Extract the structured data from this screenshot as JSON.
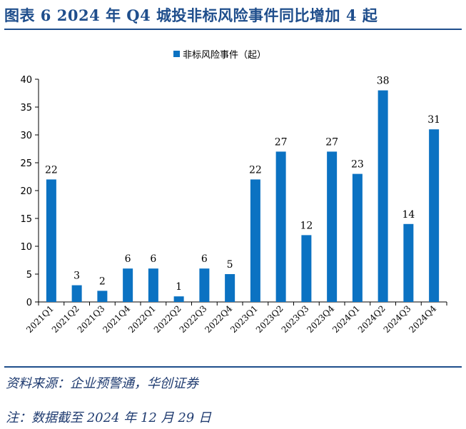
{
  "figure": {
    "title": "图表 6   2024 年 Q4 城投非标风险事件同比增加 4 起",
    "source": "资料来源：企业预警通，华创证券",
    "note": "注：数据截至 2024 年 12 月 29 日"
  },
  "colors": {
    "bar": "#0b72c2",
    "accent": "#1f4e8c",
    "axis": "#000000"
  },
  "chart_data": {
    "type": "bar",
    "title": "",
    "xlabel": "",
    "ylabel": "",
    "ylim": [
      0,
      40
    ],
    "yticks": [
      0,
      5,
      10,
      15,
      20,
      25,
      30,
      35,
      40
    ],
    "legend": "top-center",
    "categories": [
      "2021Q1",
      "2021Q2",
      "2021Q3",
      "2021Q4",
      "2022Q1",
      "2022Q2",
      "2022Q3",
      "2022Q4",
      "2023Q1",
      "2023Q2",
      "2023Q3",
      "2023Q4",
      "2024Q1",
      "2024Q2",
      "2024Q3",
      "2024Q4"
    ],
    "series": [
      {
        "name": "非标风险事件（起）",
        "values": [
          22,
          3,
          2,
          6,
          6,
          1,
          6,
          5,
          22,
          27,
          12,
          27,
          23,
          38,
          14,
          31
        ]
      }
    ]
  }
}
